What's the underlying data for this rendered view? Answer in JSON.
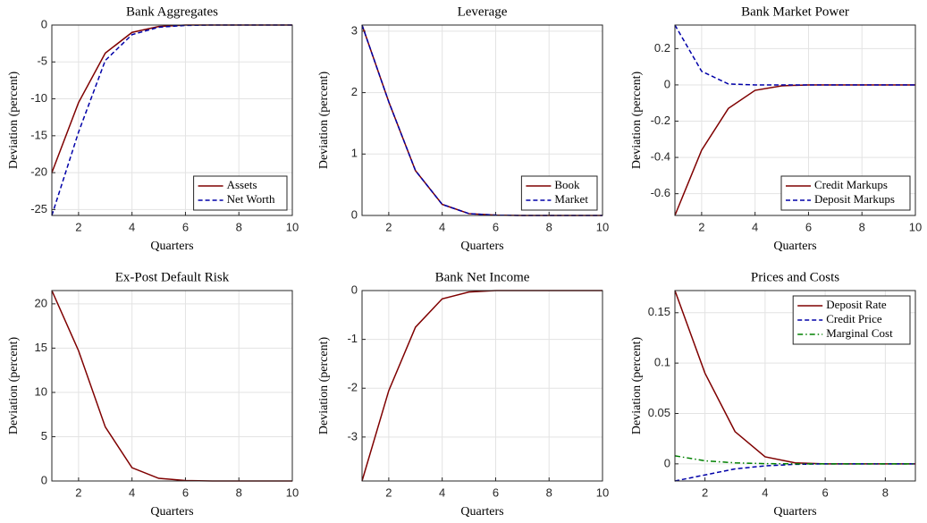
{
  "chart_data": [
    {
      "type": "line",
      "title": "Bank Aggregates",
      "x_label": "Quarters",
      "y_label": "Deviation (percent)",
      "x": [
        1,
        2,
        3,
        4,
        5,
        6,
        7,
        8,
        9,
        10
      ],
      "xlim": [
        1,
        10
      ],
      "xticks": [
        2,
        4,
        6,
        8,
        10
      ],
      "ylim": [
        -25.8,
        0
      ],
      "yticks": [
        -25,
        -20,
        -15,
        -10,
        -5,
        0
      ],
      "grid": true,
      "legend": "southeast",
      "series": [
        {
          "name": "Assets",
          "color": "#7f0000",
          "style": "solid",
          "values": [
            -20,
            -10.5,
            -3.8,
            -1,
            -0.2,
            0,
            0,
            0,
            0,
            0
          ]
        },
        {
          "name": "Net Worth",
          "color": "#0000a8",
          "style": "dashed",
          "values": [
            -25.8,
            -14.5,
            -4.8,
            -1.3,
            -0.3,
            -0.05,
            0,
            0,
            0,
            0
          ]
        }
      ]
    },
    {
      "type": "line",
      "title": "Leverage",
      "x_label": "Quarters",
      "y_label": "Deviation (percent)",
      "x": [
        1,
        2,
        3,
        4,
        5,
        6,
        7,
        8,
        9,
        10
      ],
      "xlim": [
        1,
        10
      ],
      "xticks": [
        2,
        4,
        6,
        8,
        10
      ],
      "ylim": [
        0,
        3.1
      ],
      "yticks": [
        0,
        1,
        2,
        3
      ],
      "grid": true,
      "legend": "southeast",
      "series": [
        {
          "name": "Book",
          "color": "#7f0000",
          "style": "solid",
          "values": [
            3.1,
            1.85,
            0.73,
            0.18,
            0.03,
            0.005,
            0,
            0,
            0,
            0
          ]
        },
        {
          "name": "Market",
          "color": "#0000a8",
          "style": "dashed",
          "values": [
            3.1,
            1.85,
            0.73,
            0.18,
            0.03,
            0.005,
            0,
            0,
            0,
            0
          ]
        }
      ]
    },
    {
      "type": "line",
      "title": "Bank Market Power",
      "x_label": "Quarters",
      "y_label": "Deviation (percent)",
      "x": [
        1,
        2,
        3,
        4,
        5,
        6,
        7,
        8,
        9,
        10
      ],
      "xlim": [
        1,
        10
      ],
      "xticks": [
        2,
        4,
        6,
        8,
        10
      ],
      "ylim": [
        -0.72,
        0.33
      ],
      "yticks": [
        -0.6,
        -0.4,
        -0.2,
        0,
        0.2
      ],
      "grid": true,
      "legend": "southeast",
      "series": [
        {
          "name": "Credit Markups",
          "color": "#7f0000",
          "style": "solid",
          "values": [
            -0.72,
            -0.36,
            -0.13,
            -0.03,
            -0.005,
            0,
            0,
            0,
            0,
            0
          ]
        },
        {
          "name": "Deposit Markups",
          "color": "#0000a8",
          "style": "dashed",
          "values": [
            0.33,
            0.075,
            0.005,
            0,
            0,
            0,
            0,
            0,
            0,
            0
          ]
        }
      ]
    },
    {
      "type": "line",
      "title": "Ex-Post Default Risk",
      "x_label": "Quarters",
      "y_label": "Deviation (percent)",
      "x": [
        1,
        2,
        3,
        4,
        5,
        6,
        7,
        8,
        9,
        10
      ],
      "xlim": [
        1,
        10
      ],
      "xticks": [
        2,
        4,
        6,
        8,
        10
      ],
      "ylim": [
        0,
        21.5
      ],
      "yticks": [
        0,
        5,
        10,
        15,
        20
      ],
      "grid": true,
      "series": [
        {
          "color": "#7f0000",
          "style": "solid",
          "values": [
            21.5,
            14.7,
            6.1,
            1.5,
            0.3,
            0.05,
            0,
            0,
            0,
            0
          ]
        }
      ]
    },
    {
      "type": "line",
      "title": "Bank Net Income",
      "x_label": "Quarters",
      "y_label": "Deviation (percent)",
      "x": [
        1,
        2,
        3,
        4,
        5,
        6,
        7,
        8,
        9,
        10
      ],
      "xlim": [
        1,
        10
      ],
      "xticks": [
        2,
        4,
        6,
        8,
        10
      ],
      "ylim": [
        -3.9,
        0
      ],
      "yticks": [
        -3,
        -2,
        -1,
        0
      ],
      "grid": true,
      "series": [
        {
          "color": "#7f0000",
          "style": "solid",
          "values": [
            -3.9,
            -2.05,
            -0.75,
            -0.17,
            -0.03,
            0,
            0,
            0,
            0,
            0
          ]
        }
      ]
    },
    {
      "type": "line",
      "title": "Prices and Costs",
      "x_label": "Quarters",
      "y_label": "Deviation (percent)",
      "x": [
        1,
        2,
        3,
        4,
        5,
        6,
        7,
        8,
        9
      ],
      "xlim": [
        1,
        9
      ],
      "xticks": [
        2,
        4,
        6,
        8
      ],
      "ylim": [
        -0.017,
        0.172
      ],
      "yticks": [
        0,
        0.05,
        0.1,
        0.15
      ],
      "grid": true,
      "legend": "northeast",
      "series": [
        {
          "name": "Deposit Rate",
          "color": "#7f0000",
          "style": "solid",
          "values": [
            0.172,
            0.09,
            0.032,
            0.007,
            0.001,
            0,
            0,
            0,
            0
          ]
        },
        {
          "name": "Credit Price",
          "color": "#0000a8",
          "style": "dashed",
          "values": [
            -0.017,
            -0.011,
            -0.005,
            -0.002,
            -0.0005,
            0,
            0,
            0,
            0
          ]
        },
        {
          "name": "Marginal Cost",
          "color": "#008000",
          "style": "dashdot",
          "values": [
            0.008,
            0.003,
            0.001,
            0.0002,
            0,
            0,
            0,
            0,
            0
          ]
        }
      ]
    }
  ]
}
